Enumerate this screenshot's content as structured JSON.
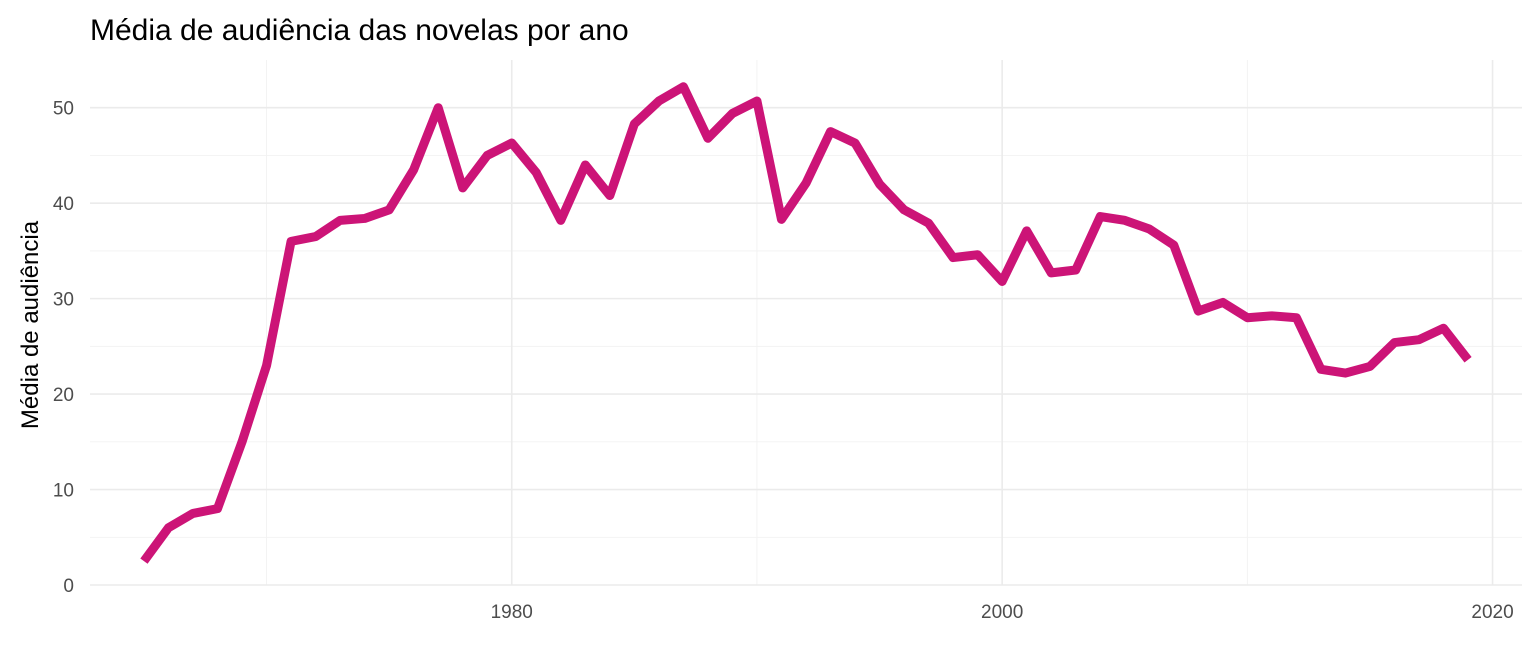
{
  "chart_data": {
    "type": "line",
    "title": "Média de audiência das novelas por ano",
    "xlabel": "",
    "ylabel": "Média de audiência",
    "xlim": [
      1962.8,
      2021.2
    ],
    "ylim": [
      0,
      55
    ],
    "x_ticks": [
      1980,
      2000,
      2020
    ],
    "y_ticks": [
      0,
      10,
      20,
      30,
      40,
      50
    ],
    "grid": true,
    "legend": "none",
    "line_color": "#CC1477",
    "series": [
      {
        "x": [
          1965,
          1966,
          1967,
          1968,
          1969,
          1970,
          1971,
          1972,
          1973,
          1974,
          1975,
          1976,
          1977,
          1978,
          1979,
          1980,
          1981,
          1982,
          1983,
          1984,
          1985,
          1986,
          1987,
          1988,
          1989,
          1990,
          1991,
          1992,
          1993,
          1994,
          1995,
          1996,
          1997,
          1998,
          1999,
          2000,
          2001,
          2002,
          2003,
          2004,
          2005,
          2006,
          2007,
          2008,
          2009,
          2010,
          2011,
          2012,
          2013,
          2014,
          2015,
          2016,
          2017,
          2018,
          2019
        ],
        "values": [
          2.5,
          6.0,
          7.5,
          8.0,
          15.0,
          23.0,
          36.0,
          36.5,
          38.2,
          38.4,
          39.3,
          43.5,
          50.0,
          41.6,
          45.0,
          46.3,
          43.2,
          38.2,
          44.0,
          40.8,
          48.3,
          50.7,
          52.2,
          46.8,
          49.4,
          50.7,
          38.3,
          42.1,
          47.5,
          46.3,
          42.0,
          39.3,
          37.9,
          34.3,
          34.6,
          31.8,
          37.1,
          32.7,
          33.0,
          38.6,
          38.2,
          37.3,
          35.6,
          28.7,
          29.6,
          28.0,
          28.2,
          28.0,
          22.6,
          22.2,
          22.9,
          25.4,
          25.7,
          26.9,
          23.6
        ]
      }
    ]
  }
}
